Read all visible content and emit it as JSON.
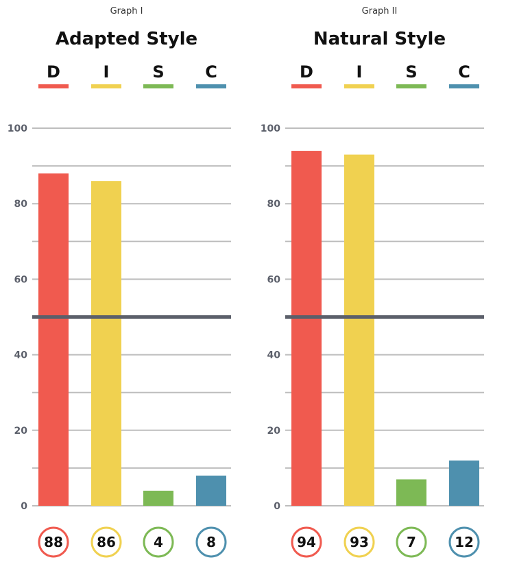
{
  "colors": {
    "D": "#f05a4f",
    "I": "#f0d150",
    "S": "#7db955",
    "C": "#4e90ae",
    "gridline": "#bdbdbd",
    "midline": "#5b5f6a",
    "tick_text": "#5b5f6a"
  },
  "chart_data": [
    {
      "type": "bar",
      "graph_label": "Graph I",
      "title": "Adapted Style",
      "categories": [
        "D",
        "I",
        "S",
        "C"
      ],
      "values": [
        88,
        86,
        4,
        8
      ],
      "value_labels": [
        "88",
        "86",
        "4",
        "8"
      ],
      "ylim": [
        0,
        100
      ],
      "yticks": [
        0,
        20,
        40,
        60,
        80,
        100
      ],
      "ytick_labels": [
        "0",
        "20",
        "40",
        "60",
        "80",
        "100"
      ],
      "gridlines": [
        0,
        10,
        20,
        30,
        40,
        50,
        60,
        70,
        80,
        90,
        100
      ],
      "midline": 50,
      "grid": true,
      "legend": "top"
    },
    {
      "type": "bar",
      "graph_label": "Graph II",
      "title": "Natural Style",
      "categories": [
        "D",
        "I",
        "S",
        "C"
      ],
      "values": [
        94,
        93,
        7,
        12
      ],
      "value_labels": [
        "94",
        "93",
        "7",
        "12"
      ],
      "ylim": [
        0,
        100
      ],
      "yticks": [
        0,
        20,
        40,
        60,
        80,
        100
      ],
      "ytick_labels": [
        "0",
        "20",
        "40",
        "60",
        "80",
        "100"
      ],
      "gridlines": [
        0,
        10,
        20,
        30,
        40,
        50,
        60,
        70,
        80,
        90,
        100
      ],
      "midline": 50,
      "grid": true,
      "legend": "top"
    }
  ]
}
